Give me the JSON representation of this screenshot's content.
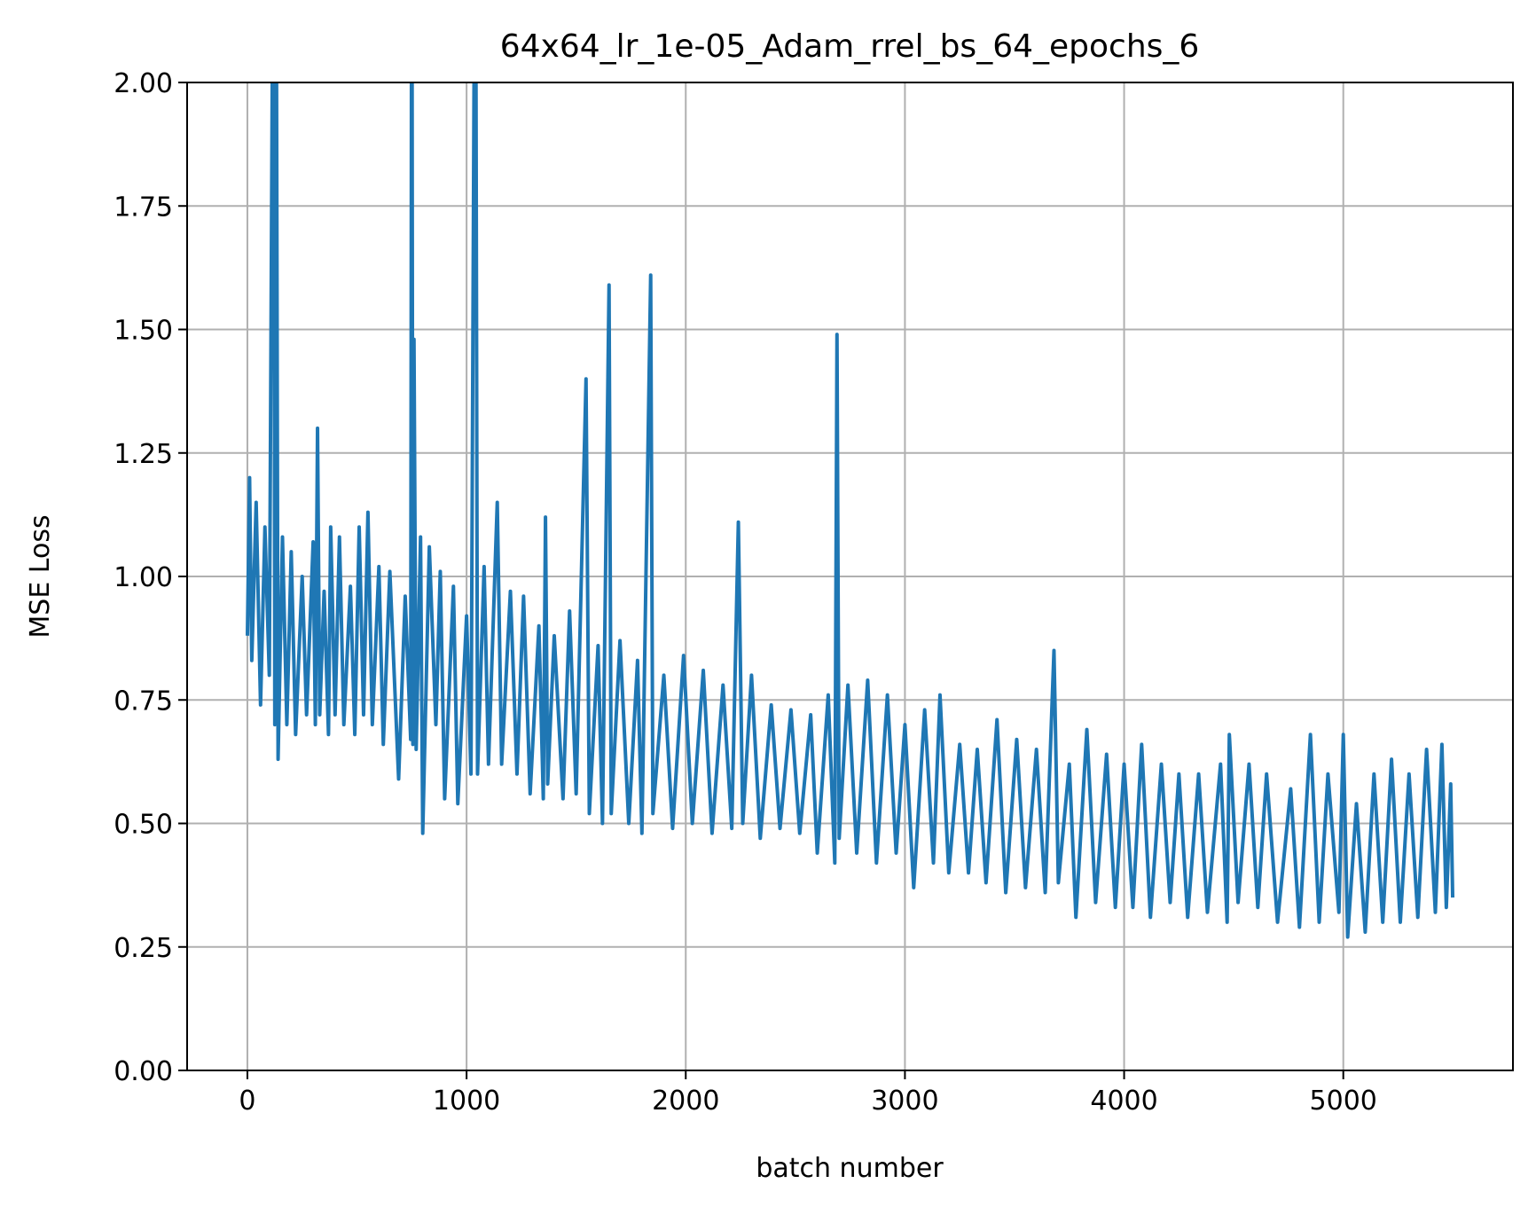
{
  "chart_data": {
    "type": "line",
    "title": "64x64_lr_1e-05_Adam_rrel_bs_64_epochs_6",
    "xlabel": "batch number",
    "ylabel": "MSE Loss",
    "x": [
      0,
      10,
      20,
      40,
      60,
      80,
      100,
      120,
      125,
      130,
      140,
      160,
      180,
      200,
      220,
      250,
      270,
      300,
      310,
      320,
      330,
      350,
      370,
      380,
      400,
      420,
      440,
      470,
      490,
      510,
      530,
      550,
      570,
      600,
      620,
      650,
      690,
      720,
      745,
      750,
      755,
      760,
      770,
      790,
      800,
      830,
      860,
      880,
      900,
      940,
      960,
      1000,
      1020,
      1040,
      1050,
      1080,
      1100,
      1140,
      1160,
      1200,
      1230,
      1260,
      1290,
      1330,
      1350,
      1360,
      1370,
      1400,
      1440,
      1470,
      1500,
      1545,
      1560,
      1600,
      1620,
      1650,
      1660,
      1700,
      1740,
      1780,
      1800,
      1840,
      1850,
      1900,
      1940,
      1990,
      2030,
      2080,
      2120,
      2170,
      2210,
      2240,
      2260,
      2300,
      2340,
      2390,
      2430,
      2480,
      2520,
      2570,
      2600,
      2650,
      2680,
      2690,
      2700,
      2740,
      2780,
      2830,
      2870,
      2920,
      2960,
      3000,
      3040,
      3090,
      3130,
      3160,
      3200,
      3250,
      3290,
      3330,
      3370,
      3420,
      3460,
      3510,
      3550,
      3600,
      3640,
      3680,
      3700,
      3750,
      3780,
      3830,
      3870,
      3920,
      3960,
      4000,
      4040,
      4080,
      4120,
      4170,
      4210,
      4250,
      4290,
      4340,
      4380,
      4440,
      4470,
      4480,
      4520,
      4570,
      4610,
      4650,
      4700,
      4760,
      4800,
      4850,
      4890,
      4930,
      4980,
      5000,
      5020,
      5060,
      5100,
      5140,
      5180,
      5220,
      5260,
      5300,
      5340,
      5380,
      5420,
      5450,
      5470,
      5490,
      5499
    ],
    "series": [
      {
        "name": "loss",
        "color": "#1f77b4",
        "values": [
          0.88,
          1.2,
          0.83,
          1.15,
          0.74,
          1.1,
          0.8,
          2.6,
          0.7,
          2.6,
          0.63,
          1.08,
          0.7,
          1.05,
          0.68,
          1.0,
          0.72,
          1.07,
          0.7,
          1.3,
          0.72,
          0.97,
          0.68,
          1.1,
          0.72,
          1.08,
          0.7,
          0.98,
          0.68,
          1.1,
          0.72,
          1.13,
          0.7,
          1.02,
          0.66,
          1.01,
          0.59,
          0.96,
          0.67,
          2.6,
          0.66,
          1.48,
          0.65,
          1.08,
          0.48,
          1.06,
          0.7,
          1.01,
          0.55,
          0.98,
          0.54,
          0.92,
          0.6,
          2.6,
          0.6,
          1.02,
          0.62,
          1.15,
          0.62,
          0.97,
          0.6,
          0.96,
          0.56,
          0.9,
          0.55,
          1.12,
          0.58,
          0.88,
          0.55,
          0.93,
          0.56,
          1.4,
          0.52,
          0.86,
          0.5,
          1.59,
          0.52,
          0.87,
          0.5,
          0.83,
          0.48,
          1.61,
          0.52,
          0.8,
          0.49,
          0.84,
          0.5,
          0.81,
          0.48,
          0.78,
          0.49,
          1.11,
          0.5,
          0.8,
          0.47,
          0.74,
          0.49,
          0.73,
          0.48,
          0.72,
          0.44,
          0.76,
          0.42,
          1.49,
          0.47,
          0.78,
          0.44,
          0.79,
          0.42,
          0.76,
          0.44,
          0.7,
          0.37,
          0.73,
          0.42,
          0.76,
          0.4,
          0.66,
          0.4,
          0.65,
          0.38,
          0.71,
          0.36,
          0.67,
          0.37,
          0.65,
          0.36,
          0.85,
          0.38,
          0.62,
          0.31,
          0.69,
          0.34,
          0.64,
          0.33,
          0.62,
          0.33,
          0.66,
          0.31,
          0.62,
          0.34,
          0.6,
          0.31,
          0.6,
          0.32,
          0.62,
          0.3,
          0.68,
          0.34,
          0.62,
          0.33,
          0.6,
          0.3,
          0.57,
          0.29,
          0.68,
          0.3,
          0.6,
          0.32,
          0.68,
          0.27,
          0.54,
          0.28,
          0.6,
          0.3,
          0.63,
          0.3,
          0.6,
          0.31,
          0.65,
          0.32,
          0.66,
          0.33,
          0.58,
          0.35
        ]
      }
    ],
    "xlim": [
      -275,
      5774
    ],
    "ylim": [
      0,
      2
    ],
    "xticks": [
      0,
      1000,
      2000,
      3000,
      4000,
      5000
    ],
    "yticks": [
      {
        "value": 0,
        "label": "0.00"
      },
      {
        "value": 0.25,
        "label": "0.25"
      },
      {
        "value": 0.5,
        "label": "0.50"
      },
      {
        "value": 0.75,
        "label": "0.75"
      },
      {
        "value": 1,
        "label": "1.00"
      },
      {
        "value": 1.25,
        "label": "1.25"
      },
      {
        "value": 1.5,
        "label": "1.50"
      },
      {
        "value": 1.75,
        "label": "1.75"
      },
      {
        "value": 2,
        "label": "2.00"
      }
    ],
    "grid": true
  }
}
